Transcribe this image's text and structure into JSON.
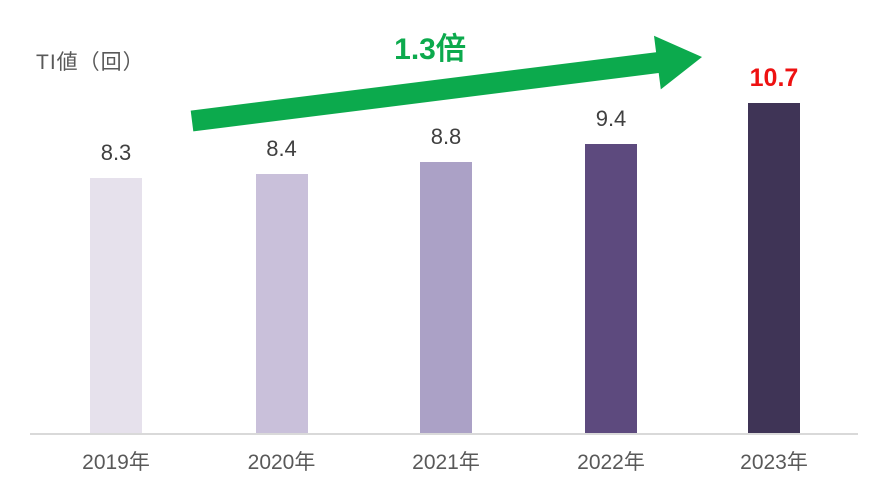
{
  "chart_data": {
    "type": "bar",
    "title": "",
    "ylabel": "TI値（回）",
    "xlabel": "",
    "categories": [
      "2019年",
      "2020年",
      "2021年",
      "2022年",
      "2023年"
    ],
    "values": [
      8.3,
      8.4,
      8.8,
      9.4,
      10.7
    ],
    "value_labels": [
      "8.3",
      "8.4",
      "8.8",
      "9.4",
      "10.7"
    ],
    "annotation": "1.3倍",
    "ylim": [
      0,
      12
    ],
    "grid": false,
    "legend": "none",
    "bar_colors": [
      "#e6e1ec",
      "#c9c0da",
      "#aba1c6",
      "#5d4a7e",
      "#3f3456"
    ],
    "value_label_color": "#404040",
    "highlight_index": 4,
    "highlight_value_color": "#ee1111",
    "annotation_color": "#0caa4d",
    "arrow_color": "#0caa4d",
    "axis_label_color": "#595959",
    "axis_line_color": "#d9d9d9"
  }
}
